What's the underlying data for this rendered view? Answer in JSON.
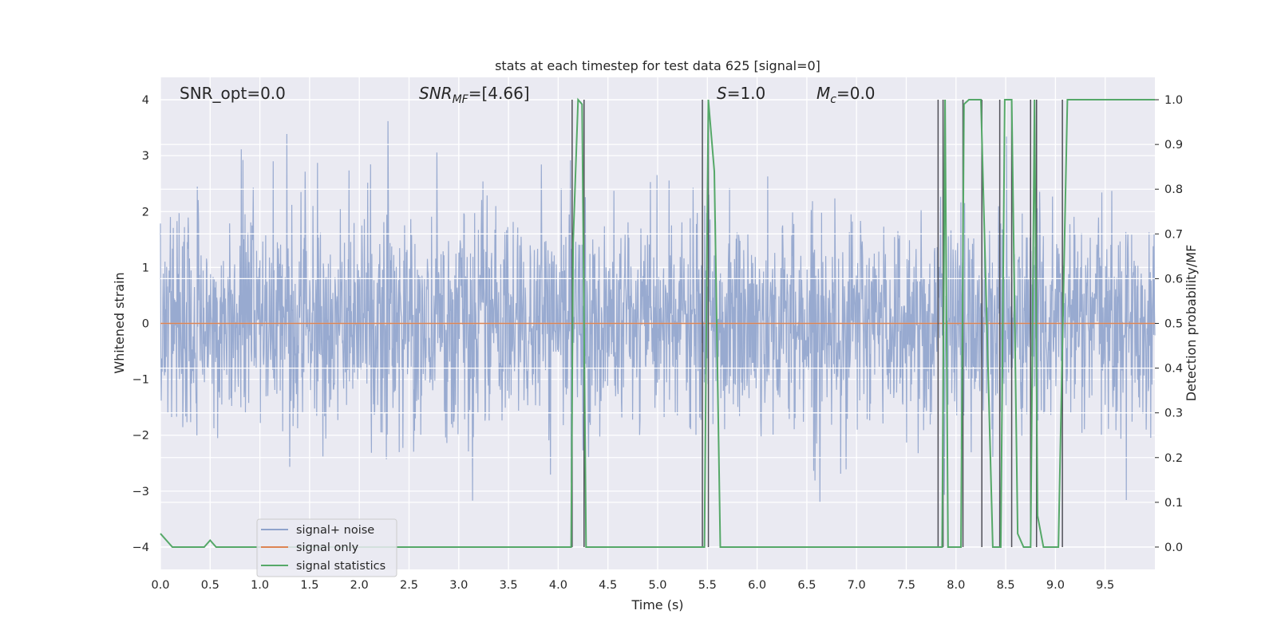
{
  "chart_data": {
    "type": "line",
    "title": "stats at each timestep for test data 625 [signal=0]",
    "xlabel": "Time (s)",
    "ylabel": "Whitened strain",
    "ylabel_right": "Detection probability/MF",
    "xlim": [
      0,
      10
    ],
    "ylim": [
      -4.4,
      4.4
    ],
    "ylim_right": [
      -0.05,
      1.05
    ],
    "x_ticks": [
      "0.0",
      "0.5",
      "1.0",
      "1.5",
      "2.0",
      "2.5",
      "3.0",
      "3.5",
      "4.0",
      "4.5",
      "5.0",
      "5.5",
      "6.0",
      "6.5",
      "7.0",
      "7.5",
      "8.0",
      "8.5",
      "9.0",
      "9.5"
    ],
    "y_ticks": [
      "4",
      "3",
      "2",
      "1",
      "0",
      "−1",
      "−2",
      "−3",
      "−4"
    ],
    "y_ticks_right": [
      "1.0",
      "0.9",
      "0.8",
      "0.7",
      "0.6",
      "0.5",
      "0.4",
      "0.3",
      "0.2",
      "0.1",
      "0.0"
    ],
    "grid": true,
    "legend_position": "lower-left",
    "annotations": {
      "snr_opt": "SNR_opt=0.0",
      "snr_mf_sym": "SNR",
      "snr_mf_sub": "MF",
      "snr_mf_val": "=[4.66]",
      "s_sym": "S",
      "s_val": "=1.0",
      "mc_sym": "M",
      "mc_sub": "c",
      "mc_val": "=0.0"
    },
    "series": [
      {
        "name": "signal+ noise",
        "color": "#8fa3cc",
        "noise_std": 0.95,
        "max_abs": 4.0
      },
      {
        "name": "signal only",
        "color": "#dd8452",
        "value": 0.0
      },
      {
        "name": "signal statistics",
        "color": "#55a868",
        "x": [
          0,
          0.12,
          0.44,
          0.5,
          0.56,
          4.13,
          4.15,
          4.2,
          4.24,
          4.28,
          5.44,
          5.47,
          5.51,
          5.57,
          5.63,
          7.82,
          7.86,
          7.89,
          7.92,
          8.05,
          8.08,
          8.13,
          8.25,
          8.37,
          8.45,
          8.49,
          8.56,
          8.62,
          8.68,
          8.75,
          8.79,
          8.82,
          8.88,
          9.03,
          9.07,
          9.12,
          10.0
        ],
        "y": [
          0.03,
          0.0,
          0.0,
          0.015,
          0.0,
          0.0,
          0.68,
          1.0,
          0.99,
          0.0,
          0.0,
          0.0,
          1.0,
          0.84,
          0.0,
          0.0,
          0.0,
          1.0,
          0.0,
          0.0,
          0.99,
          1.0,
          1.0,
          0.0,
          0.0,
          1.0,
          1.0,
          0.03,
          0.0,
          0.0,
          1.0,
          0.07,
          0.0,
          0.0,
          0.45,
          1.0,
          1.0
        ]
      }
    ],
    "detection_lines_x": [
      4.14,
      4.26,
      5.45,
      5.51,
      7.82,
      7.87,
      8.07,
      8.26,
      8.44,
      8.56,
      8.75,
      8.81,
      9.07
    ]
  }
}
